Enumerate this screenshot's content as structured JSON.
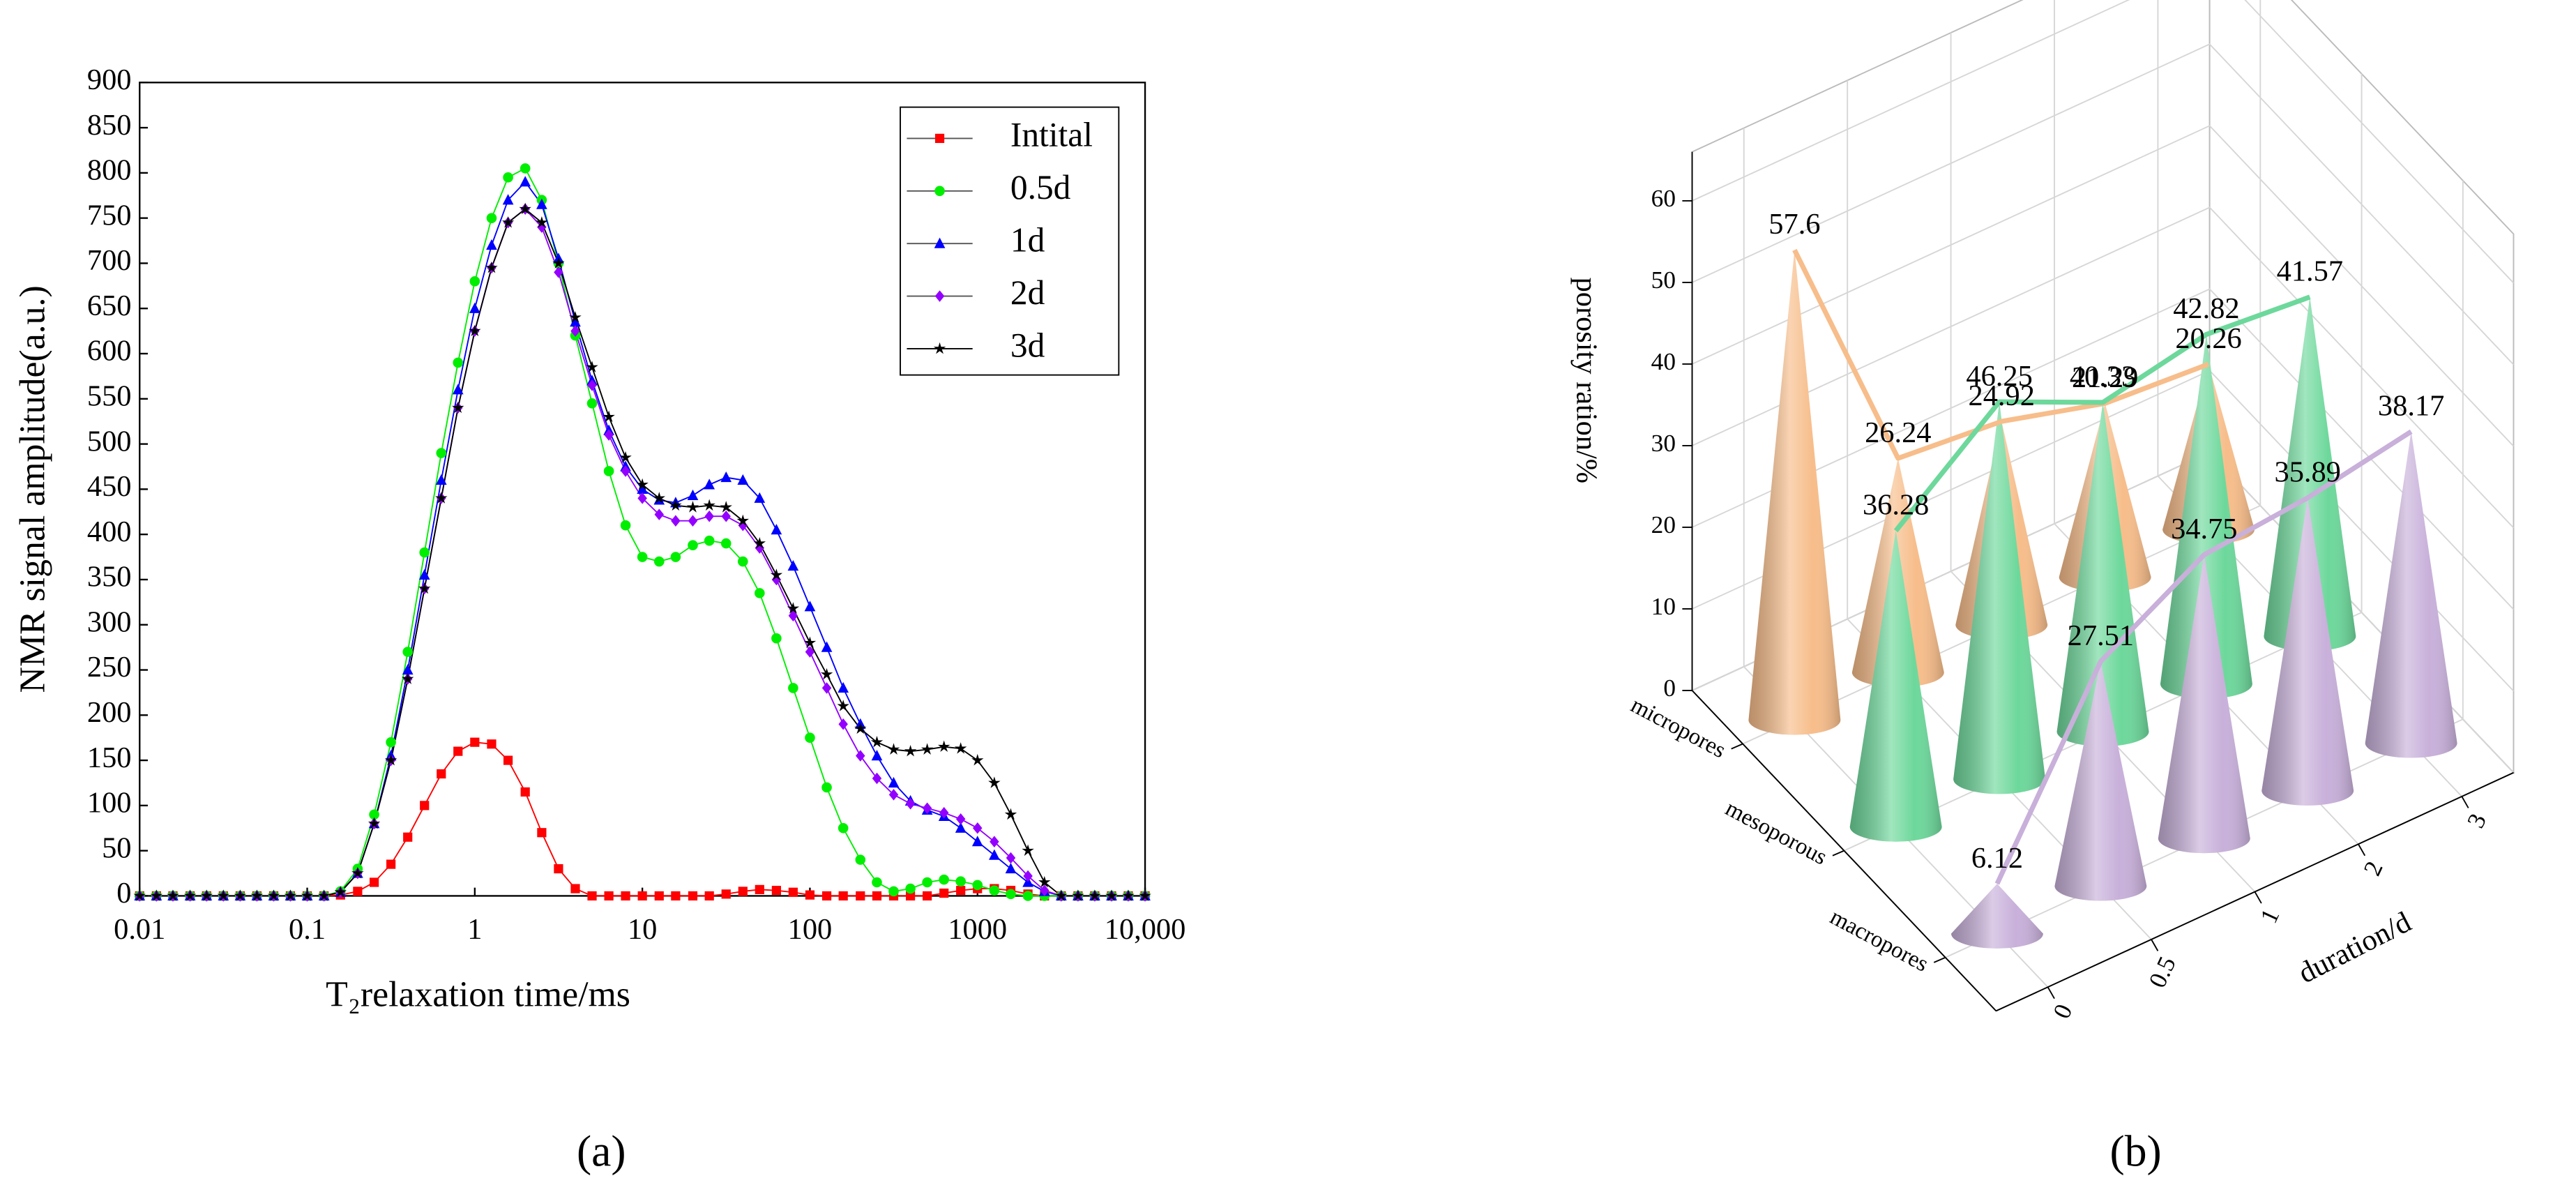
{
  "chart_data": [
    {
      "type": "line",
      "panel_label": "(a)",
      "xlabel": "T₂relaxation time/ms",
      "ylabel": "NMR signal amplitude(a.u.)",
      "xscale": "log",
      "xlim": [
        0.01,
        10000
      ],
      "xticks": [
        0.01,
        0.1,
        1,
        10,
        100,
        1000,
        {
          "value": 10000,
          "label": "10,000"
        }
      ],
      "ylim": [
        0,
        900
      ],
      "yticks": [
        0,
        50,
        100,
        150,
        200,
        250,
        300,
        350,
        400,
        450,
        500,
        550,
        600,
        650,
        700,
        750,
        800,
        850,
        900
      ],
      "legend": "upper right",
      "x": [
        0.01,
        0.0126,
        0.0158,
        0.02,
        0.0251,
        0.0316,
        0.0398,
        0.0501,
        0.0631,
        0.0794,
        0.1,
        0.126,
        0.158,
        0.2,
        0.251,
        0.316,
        0.398,
        0.501,
        0.631,
        0.794,
        1,
        1.26,
        1.58,
        2,
        2.51,
        3.16,
        3.98,
        5.01,
        6.31,
        7.94,
        10,
        12.6,
        15.8,
        20,
        25.1,
        31.6,
        39.8,
        50.1,
        63.1,
        79.4,
        100,
        126,
        158,
        200,
        251,
        316,
        398,
        501,
        631,
        794,
        1000,
        1260,
        1580,
        2000,
        2510,
        3160,
        3980,
        5010,
        6310,
        7940,
        10000
      ],
      "series": [
        {
          "name": "Intital",
          "color": "#ff0000",
          "marker": "square",
          "values": [
            0,
            0,
            0,
            0,
            0,
            0,
            0,
            0,
            0,
            0,
            0,
            0,
            1,
            5,
            15,
            35,
            65,
            100,
            135,
            160,
            170,
            168,
            150,
            115,
            70,
            30,
            8,
            0,
            0,
            0,
            0,
            0,
            0,
            0,
            0,
            2,
            5,
            7,
            6,
            4,
            1,
            0,
            0,
            0,
            0,
            0,
            0,
            0,
            3,
            6,
            8,
            8,
            6,
            2,
            0,
            0,
            0,
            0,
            0,
            0,
            0
          ]
        },
        {
          "name": "0.5d",
          "color": "#00ee00",
          "marker": "circle",
          "values": [
            0,
            0,
            0,
            0,
            0,
            0,
            0,
            0,
            0,
            0,
            0,
            0,
            5,
            30,
            90,
            170,
            270,
            380,
            490,
            590,
            680,
            750,
            795,
            805,
            770,
            700,
            620,
            545,
            470,
            410,
            375,
            370,
            375,
            388,
            393,
            390,
            370,
            335,
            285,
            230,
            175,
            120,
            75,
            40,
            15,
            5,
            8,
            15,
            18,
            16,
            12,
            6,
            2,
            0,
            0,
            0,
            0,
            0,
            0,
            0,
            0
          ]
        },
        {
          "name": "1d",
          "color": "#0000ff",
          "marker": "triangle",
          "values": [
            0,
            0,
            0,
            0,
            0,
            0,
            0,
            0,
            0,
            0,
            0,
            0,
            4,
            25,
            80,
            155,
            250,
            355,
            460,
            560,
            650,
            720,
            770,
            790,
            765,
            705,
            635,
            570,
            515,
            475,
            450,
            438,
            435,
            443,
            455,
            463,
            460,
            440,
            405,
            365,
            320,
            275,
            230,
            190,
            155,
            125,
            105,
            95,
            88,
            75,
            60,
            45,
            30,
            15,
            5,
            0,
            0,
            0,
            0,
            0,
            0
          ]
        },
        {
          "name": "2d",
          "color": "#9400ff",
          "marker": "diamond",
          "values": [
            0,
            0,
            0,
            0,
            0,
            0,
            0,
            0,
            0,
            0,
            0,
            0,
            4,
            25,
            80,
            150,
            240,
            340,
            440,
            540,
            625,
            695,
            745,
            760,
            740,
            690,
            625,
            565,
            510,
            470,
            440,
            422,
            415,
            415,
            420,
            420,
            410,
            385,
            350,
            310,
            270,
            230,
            190,
            155,
            130,
            112,
            102,
            97,
            92,
            85,
            75,
            60,
            42,
            22,
            6,
            0,
            0,
            0,
            0,
            0,
            0
          ]
        },
        {
          "name": "3d",
          "color": "#000000",
          "marker": "star",
          "values": [
            0,
            0,
            0,
            0,
            0,
            0,
            0,
            0,
            0,
            0,
            0,
            0,
            4,
            25,
            80,
            150,
            240,
            340,
            440,
            540,
            625,
            695,
            745,
            760,
            745,
            700,
            640,
            585,
            530,
            485,
            455,
            440,
            432,
            430,
            432,
            430,
            415,
            390,
            355,
            318,
            280,
            245,
            210,
            185,
            170,
            162,
            160,
            162,
            165,
            163,
            150,
            125,
            90,
            50,
            15,
            0,
            0,
            0,
            0,
            0,
            0
          ]
        }
      ]
    },
    {
      "type": "cone3d",
      "panel_label": "(b)",
      "xlabel": "duration/d",
      "zlabel": "porosity ration/%",
      "categories": [
        "0",
        "0.5",
        "1",
        "2",
        "3"
      ],
      "groups": [
        "micropores",
        "mesoporous",
        "macropores"
      ],
      "zlim": [
        0,
        66
      ],
      "zticks": [
        0,
        10,
        20,
        30,
        40,
        50,
        60
      ],
      "series": [
        {
          "name": "micropores",
          "color": "#f7bd8a",
          "values": [
            57.6,
            26.24,
            24.92,
            21.29,
            20.26
          ]
        },
        {
          "name": "mesoporous",
          "color": "#6dd89b",
          "values": [
            36.28,
            46.25,
            40.33,
            42.82,
            41.57
          ]
        },
        {
          "name": "macropores",
          "color": "#c8b0da",
          "values": [
            6.12,
            27.51,
            34.75,
            35.89,
            38.17
          ]
        }
      ]
    }
  ]
}
